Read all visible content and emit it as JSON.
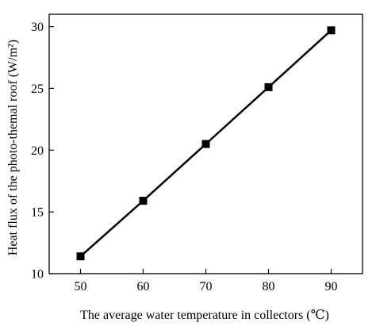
{
  "chart_data": {
    "type": "line",
    "title": "",
    "xlabel": "The average water temperature in collectors (℃)",
    "ylabel": "Heat flux of the photo-themal roof (W/m²)",
    "x": [
      50,
      60,
      70,
      80,
      90
    ],
    "series": [
      {
        "values": [
          11.4,
          15.9,
          20.5,
          25.1,
          29.7
        ]
      }
    ],
    "xlim": [
      45,
      95
    ],
    "ylim": [
      10,
      31
    ],
    "xticks": [
      50,
      60,
      70,
      80,
      90
    ],
    "yticks": [
      10,
      15,
      20,
      25,
      30
    ],
    "xtick_labels": [
      "50",
      "60",
      "70",
      "80",
      "90"
    ],
    "ytick_labels": [
      "10",
      "15",
      "20",
      "25",
      "30"
    ],
    "grid": false,
    "legend": "none",
    "marker": "square",
    "colors": {
      "line": "#000000",
      "marker": "#000000",
      "axis": "#000000"
    }
  }
}
